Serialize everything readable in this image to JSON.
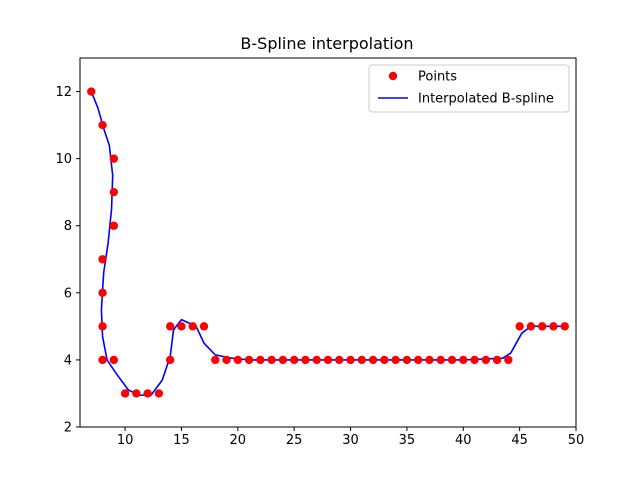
{
  "chart_data": {
    "type": "scatter",
    "title": "B-Spline interpolation",
    "xlabel": "",
    "ylabel": "",
    "xlim": [
      6,
      50
    ],
    "ylim": [
      2,
      13
    ],
    "grid": false,
    "legend_position": "top-right",
    "x_ticks": [
      "10",
      "15",
      "20",
      "25",
      "30",
      "35",
      "40",
      "45",
      "50"
    ],
    "y_ticks": [
      "2",
      "4",
      "6",
      "8",
      "10",
      "12"
    ],
    "series": [
      {
        "name": "Points",
        "kind": "scatter",
        "color": "#ff0000",
        "points": [
          [
            7,
            12
          ],
          [
            8,
            11
          ],
          [
            9,
            10
          ],
          [
            9,
            9
          ],
          [
            9,
            8
          ],
          [
            8,
            7
          ],
          [
            8,
            6
          ],
          [
            8,
            5
          ],
          [
            8,
            4
          ],
          [
            9,
            4
          ],
          [
            10,
            3
          ],
          [
            11,
            3
          ],
          [
            12,
            3
          ],
          [
            13,
            3
          ],
          [
            14,
            4
          ],
          [
            14,
            5
          ],
          [
            15,
            5
          ],
          [
            16,
            5
          ],
          [
            17,
            5
          ],
          [
            18,
            4
          ],
          [
            19,
            4
          ],
          [
            20,
            4
          ],
          [
            21,
            4
          ],
          [
            22,
            4
          ],
          [
            23,
            4
          ],
          [
            24,
            4
          ],
          [
            25,
            4
          ],
          [
            26,
            4
          ],
          [
            27,
            4
          ],
          [
            28,
            4
          ],
          [
            29,
            4
          ],
          [
            30,
            4
          ],
          [
            31,
            4
          ],
          [
            32,
            4
          ],
          [
            33,
            4
          ],
          [
            34,
            4
          ],
          [
            35,
            4
          ],
          [
            36,
            4
          ],
          [
            37,
            4
          ],
          [
            38,
            4
          ],
          [
            39,
            4
          ],
          [
            40,
            4
          ],
          [
            41,
            4
          ],
          [
            42,
            4
          ],
          [
            43,
            4
          ],
          [
            44,
            4
          ],
          [
            45,
            5
          ],
          [
            46,
            5
          ],
          [
            47,
            5
          ],
          [
            48,
            5
          ],
          [
            49,
            5
          ]
        ]
      },
      {
        "name": "Interpolated B-spline",
        "kind": "line",
        "color": "#0000ff",
        "points": [
          [
            7,
            12
          ],
          [
            7.6,
            11.5
          ],
          [
            8.1,
            10.9
          ],
          [
            8.6,
            10.4
          ],
          [
            8.9,
            9.5
          ],
          [
            8.8,
            8.5
          ],
          [
            8.5,
            7.5
          ],
          [
            8.1,
            6.6
          ],
          [
            7.9,
            5.5
          ],
          [
            8.0,
            4.7
          ],
          [
            8.4,
            4.0
          ],
          [
            9.2,
            3.6
          ],
          [
            10.3,
            3.1
          ],
          [
            11.3,
            2.95
          ],
          [
            12.3,
            2.95
          ],
          [
            13.3,
            3.4
          ],
          [
            14.0,
            4.1
          ],
          [
            14.3,
            4.9
          ],
          [
            15.0,
            5.2
          ],
          [
            16.3,
            5.0
          ],
          [
            17.0,
            4.5
          ],
          [
            18.0,
            4.15
          ],
          [
            19.5,
            4.05
          ],
          [
            21,
            4
          ],
          [
            30,
            4
          ],
          [
            40,
            4
          ],
          [
            43.5,
            4.05
          ],
          [
            44.2,
            4.2
          ],
          [
            45.2,
            4.8
          ],
          [
            46,
            5.0
          ],
          [
            47,
            5
          ],
          [
            48,
            5
          ],
          [
            49,
            5
          ]
        ]
      }
    ]
  }
}
